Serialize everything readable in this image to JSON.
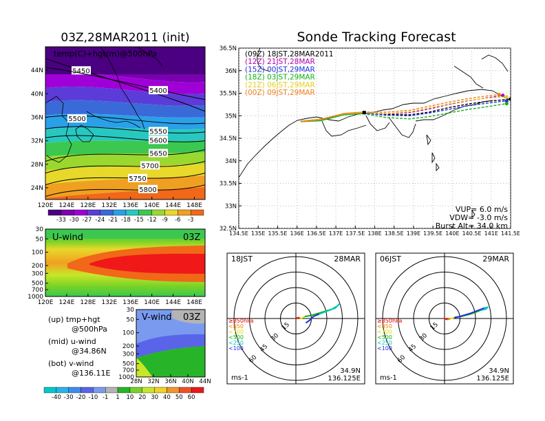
{
  "page": {
    "left_title": "03Z,28MAR2011 (init)",
    "right_title": "Sonde Tracking Forecast"
  },
  "chart_data": [
    {
      "type": "heatmap",
      "panel": "upper-left map",
      "label": "temp(C)+hgt(m)@500hPa",
      "x_ticks": [
        "120E",
        "124E",
        "128E",
        "132E",
        "136E",
        "140E",
        "144E",
        "148E"
      ],
      "y_ticks": [
        "24N",
        "28N",
        "32N",
        "36N",
        "40N",
        "44N"
      ],
      "xlim": [
        120,
        150
      ],
      "ylim": [
        22,
        48
      ],
      "colorbar": {
        "labels": [
          "-33",
          "-30",
          "-27",
          "-24",
          "-21",
          "-18",
          "-15",
          "-12",
          "-9",
          "-6",
          "-3"
        ],
        "colors": [
          "#4a0080",
          "#7a00b0",
          "#a000d8",
          "#5b3cd8",
          "#3a6ad8",
          "#2aa0e8",
          "#28c8c0",
          "#3cc850",
          "#9ad830",
          "#e8d82a",
          "#f0a020",
          "#f06818"
        ]
      },
      "height_contours": [
        {
          "label": "5450",
          "lat_at_west": 46,
          "lat_at_east": 37
        },
        {
          "label": "5400",
          "lat_at_west": 44.5,
          "lat_at_east": 39
        },
        {
          "label": "5500",
          "lat_at_west": 36,
          "lat_at_east": 35
        },
        {
          "label": "5550",
          "lat_at_west": 34,
          "lat_at_east": 33.5
        },
        {
          "label": "5600",
          "lat_at_west": 32.5,
          "lat_at_east": 32
        },
        {
          "label": "5650",
          "lat_at_west": 28.5,
          "lat_at_east": 30.5
        },
        {
          "label": "5700",
          "lat_at_west": 26.5,
          "lat_at_east": 28.5
        },
        {
          "label": "5750",
          "lat_at_west": 24.5,
          "lat_at_east": 26.5
        },
        {
          "label": "5800",
          "lat_at_west": 22.5,
          "lat_at_east": 24.5
        }
      ]
    },
    {
      "type": "heatmap",
      "panel": "middle-left cross-section",
      "label": "U-wind",
      "time": "03Z",
      "x_ticks": [
        "120E",
        "124E",
        "128E",
        "132E",
        "136E",
        "140E",
        "144E",
        "148E"
      ],
      "y_ticks": [
        "30",
        "50",
        "100",
        "200",
        "300",
        "500",
        "700",
        "1000"
      ]
    },
    {
      "type": "heatmap",
      "panel": "lower-left cross-section",
      "label": "V-wind",
      "time": "03Z",
      "x_ticks": [
        "28N",
        "32N",
        "36N",
        "40N",
        "44N"
      ],
      "y_ticks": [
        "30",
        "50",
        "100",
        "200",
        "300",
        "500",
        "700",
        "1000"
      ],
      "colorbar": {
        "labels": [
          "-40",
          "-30",
          "-20",
          "-10",
          "-1",
          "1",
          "10",
          "20",
          "30",
          "40",
          "50",
          "60"
        ],
        "colors": [
          "#00c8c8",
          "#28b4e8",
          "#3c8cf0",
          "#5a64e8",
          "#7a9af0",
          "#b4b4b4",
          "#28b428",
          "#78d228",
          "#c8e628",
          "#f0d228",
          "#f09628",
          "#f05028",
          "#e81818"
        ]
      }
    },
    {
      "type": "line",
      "panel": "track map",
      "xlim": [
        134.5,
        141.5
      ],
      "ylim": [
        32.5,
        36.5
      ],
      "x_ticks": [
        "134.5E",
        "135E",
        "135.5E",
        "136E",
        "136.5E",
        "137E",
        "137.5E",
        "138E",
        "138.5E",
        "139E",
        "139.5E",
        "140E",
        "140.5E",
        "141E",
        "141.5E"
      ],
      "y_ticks": [
        "32.5N",
        "33N",
        "33.5N",
        "34N",
        "34.5N",
        "35N",
        "35.5N",
        "36N",
        "36.5N"
      ],
      "grid": true,
      "series": [
        {
          "name": "(09Z)  18JST,28MAR2011",
          "color": "#000000",
          "x": [
            136.1,
            136.6,
            137.2,
            137.7,
            138.3,
            138.9,
            139.4,
            139.9,
            140.4,
            140.9,
            141.5
          ],
          "y": [
            34.88,
            34.92,
            35.03,
            35.07,
            35.03,
            35.02,
            35.08,
            35.18,
            35.26,
            35.32,
            35.37
          ]
        },
        {
          "name": "(12Z)  21JST,28MAR",
          "color": "#b000b0",
          "x": [
            136.1,
            136.6,
            137.2,
            137.7,
            138.3,
            138.9,
            139.4,
            139.9,
            140.4,
            140.9,
            141.3
          ],
          "y": [
            34.87,
            34.9,
            35.03,
            35.06,
            35.04,
            35.07,
            35.15,
            35.25,
            35.33,
            35.4,
            35.45
          ]
        },
        {
          "name": "(15Z)  00JST,29MAR",
          "color": "#2030e0",
          "x": [
            136.1,
            136.6,
            137.2,
            137.7,
            138.3,
            138.9,
            139.4,
            139.9,
            140.4,
            140.9,
            141.4
          ],
          "y": [
            34.88,
            34.92,
            35.04,
            35.06,
            35.01,
            35.0,
            35.06,
            35.14,
            35.22,
            35.28,
            35.33
          ]
        },
        {
          "name": "(18Z)  03JST,29MAR",
          "color": "#10b010",
          "x": [
            136.1,
            136.6,
            137.2,
            137.7,
            138.3,
            138.9,
            139.4,
            139.9,
            140.4,
            140.9,
            141.4
          ],
          "y": [
            34.87,
            34.89,
            35.02,
            35.05,
            34.96,
            34.93,
            34.98,
            35.06,
            35.14,
            35.2,
            35.27
          ]
        },
        {
          "name": "(21Z)  06JST,29MAR",
          "color": "#e0d020",
          "x": [
            136.1,
            136.6,
            137.2,
            137.7,
            138.3,
            138.9,
            139.4,
            139.9,
            140.4,
            140.9,
            141.4
          ],
          "y": [
            34.88,
            34.92,
            35.04,
            35.07,
            35.05,
            35.09,
            35.17,
            35.26,
            35.34,
            35.39,
            35.42
          ]
        },
        {
          "name": "(00Z)  09JST,29MAR",
          "color": "#f08020",
          "x": [
            136.1,
            136.6,
            137.2,
            137.7,
            138.3,
            138.9,
            139.4,
            139.9,
            140.4,
            140.9,
            141.2
          ],
          "y": [
            34.87,
            34.91,
            35.05,
            35.08,
            35.08,
            35.12,
            35.21,
            35.3,
            35.38,
            35.44,
            35.47
          ]
        }
      ],
      "annotations": [
        "VUP=  6.0  m/s",
        "VDW=  -3.0  m/s",
        "Burst Alt=  34.0  km"
      ]
    },
    {
      "type": "line",
      "panel": "hodograph left",
      "time_label": "18JST",
      "date_label": "28MAR",
      "unit_label": "ms-1",
      "location": [
        "34.9N",
        "136.125E"
      ],
      "ring_labels": [
        "15",
        "30",
        "45",
        "60"
      ],
      "pressure_legend": [
        {
          "label": "≥850hPa",
          "color": "#e00000"
        },
        {
          "label": "<850",
          "color": "#f08000"
        },
        {
          "label": "<700",
          "color": "#e0e000"
        },
        {
          "label": "<500",
          "color": "#10b010"
        },
        {
          "label": "<250",
          "color": "#00c8c8"
        },
        {
          "label": "<100",
          "color": "#2030e0"
        }
      ],
      "u": [
        0,
        3,
        5,
        9,
        15,
        25,
        35,
        40,
        42,
        38,
        22,
        17,
        13,
        10
      ],
      "v": [
        0,
        1,
        0,
        2,
        3,
        6,
        9,
        12,
        14,
        10,
        4,
        2,
        -2,
        -4
      ],
      "segment_colors": [
        "#e00000",
        "#f08000",
        "#e0e000",
        "#10b010",
        "#10b010",
        "#10b010",
        "#10b010",
        "#00c8c8",
        "#00c8c8",
        "#00c8c8",
        "#2030e0",
        "#2030e0",
        "#2030e0"
      ]
    },
    {
      "type": "line",
      "panel": "hodograph right",
      "time_label": "06JST",
      "date_label": "29MAR",
      "unit_label": "ms-1",
      "location": [
        "34.9N",
        "136.125E"
      ],
      "ring_labels": [
        "15",
        "30",
        "45",
        "60"
      ],
      "pressure_legend": [
        {
          "label": "≥850hPa",
          "color": "#e00000"
        },
        {
          "label": "<850",
          "color": "#f08000"
        },
        {
          "label": "<700",
          "color": "#e0e000"
        },
        {
          "label": "<500",
          "color": "#10b010"
        },
        {
          "label": "<250",
          "color": "#00c8c8"
        },
        {
          "label": "<100",
          "color": "#2030e0"
        }
      ],
      "u": [
        0,
        3,
        6,
        10,
        16,
        24,
        30,
        35,
        40,
        42,
        38,
        25,
        15,
        10
      ],
      "v": [
        0,
        -1,
        0,
        1,
        2,
        4,
        6,
        8,
        9,
        11,
        10,
        5,
        2,
        1
      ],
      "segment_colors": [
        "#e00000",
        "#f08000",
        "#e0e000",
        "#10b010",
        "#10b010",
        "#10b010",
        "#10b010",
        "#00c8c8",
        "#00c8c8",
        "#00c8c8",
        "#2030e0",
        "#2030e0",
        "#2030e0"
      ]
    }
  ],
  "bottom_legend": {
    "lines": [
      "(up)  tmp+hgt",
      "@500hPa",
      "(mid)  u-wind",
      "@34.86N",
      "(bot)  v-wind",
      "@136.11E"
    ]
  }
}
